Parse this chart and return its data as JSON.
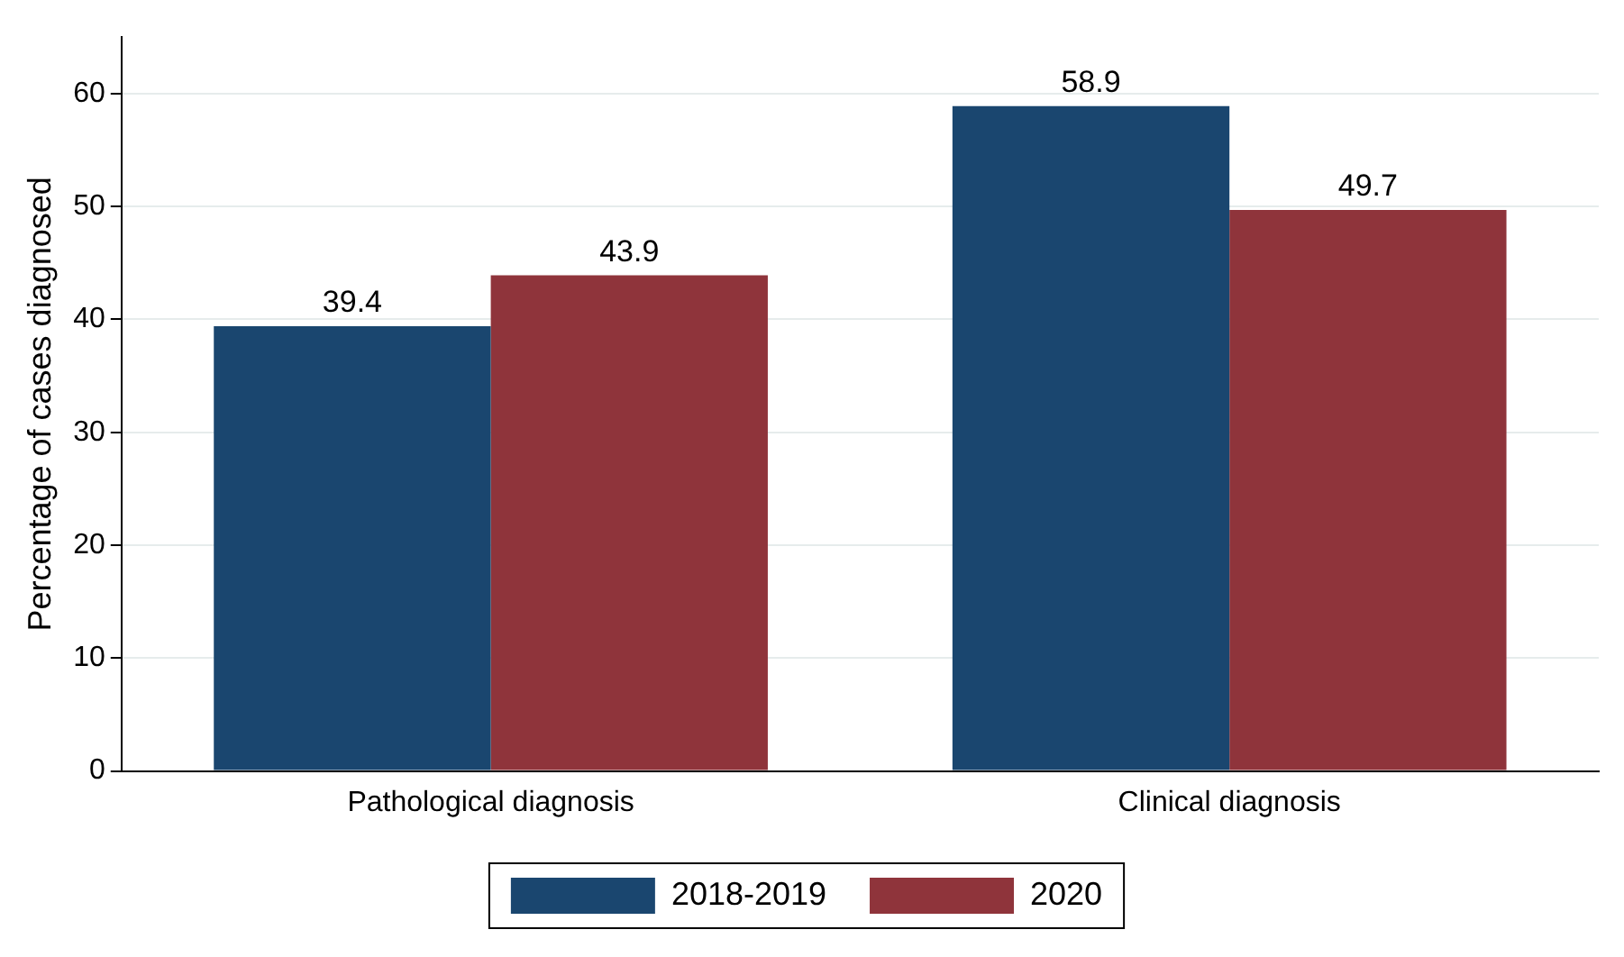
{
  "chart_data": {
    "type": "bar",
    "ylabel": "Percentage of cases diagnosed",
    "categories": [
      "Pathological diagnosis",
      "Clinical diagnosis"
    ],
    "series": [
      {
        "name": "2018-2019",
        "color": "#1a466f",
        "values": [
          39.4,
          58.9
        ]
      },
      {
        "name": "2020",
        "color": "#8f343b",
        "values": [
          43.9,
          49.7
        ]
      }
    ],
    "ylim": [
      0,
      65
    ],
    "yticks": [
      0,
      10,
      20,
      30,
      40,
      50,
      60
    ],
    "grid": "y",
    "legend": "bottom",
    "data_labels": true
  }
}
